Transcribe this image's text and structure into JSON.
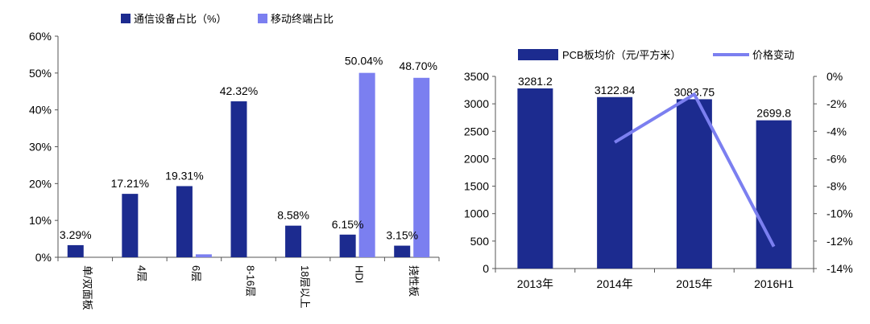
{
  "chart_data": [
    {
      "type": "bar",
      "legend": [
        "通信设备占比（%）",
        "移动终端占比"
      ],
      "legend_position": "top",
      "categories": [
        "单/双面板",
        "4层",
        "6层",
        "8-16层",
        "18层以上",
        "HDI",
        "挠性板"
      ],
      "series": [
        {
          "name": "通信设备占比（%）",
          "values": [
            3.29,
            17.21,
            19.31,
            42.32,
            8.58,
            6.15,
            3.15
          ],
          "color": "#1c2b8f"
        },
        {
          "name": "移动终端占比",
          "values": [
            0,
            0,
            0.8,
            0,
            0,
            50.04,
            48.7
          ],
          "color": "#7b7ff0"
        }
      ],
      "data_labels": [
        "3.29%",
        "17.21%",
        "19.31%",
        "42.32%",
        "8.58%",
        "6.15%",
        "3.15%",
        "50.04%",
        "48.70%"
      ],
      "y_ticks": [
        "0%",
        "10%",
        "20%",
        "30%",
        "40%",
        "50%",
        "60%"
      ],
      "ylim": [
        0,
        60
      ],
      "grid": false
    },
    {
      "type": "bar+line",
      "legend": [
        "PCB板均价（元/平方米）",
        "价格变动"
      ],
      "legend_position": "top",
      "categories": [
        "2013年",
        "2014年",
        "2015年",
        "2016H1"
      ],
      "bars": {
        "name": "PCB板均价（元/平方米）",
        "values": [
          3281.2,
          3122.84,
          3083.75,
          2699.8
        ],
        "color": "#1c2b8f",
        "labels": [
          "3281.2",
          "3122.84",
          "3083.75",
          "2699.8"
        ]
      },
      "line": {
        "name": "价格变动",
        "values": [
          null,
          -4.8,
          -1.3,
          -12.4
        ],
        "color": "#7b7ff0"
      },
      "y_left_ticks": [
        "0",
        "500",
        "1000",
        "1500",
        "2000",
        "2500",
        "3000",
        "3500"
      ],
      "y_left_lim": [
        0,
        3500
      ],
      "y_right_ticks": [
        "0%",
        "-2%",
        "-4%",
        "-6%",
        "-8%",
        "-10%",
        "-12%",
        "-14%"
      ],
      "y_right_lim": [
        -14,
        0
      ],
      "grid": false
    }
  ]
}
